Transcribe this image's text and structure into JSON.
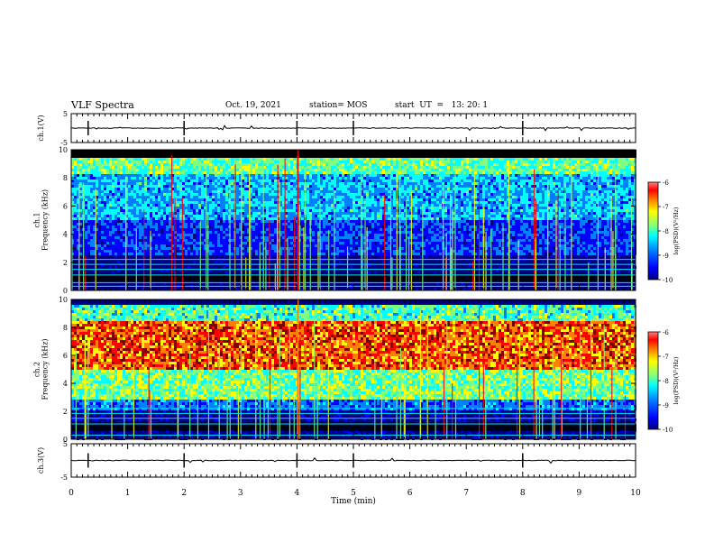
{
  "header": {
    "title": "VLF Spectra",
    "date": "Oct. 19, 2021",
    "station": "station= MOS",
    "start_ut": "start  UT  =   13: 20: 1"
  },
  "colors": {
    "jet": [
      "#00007f",
      "#0000ff",
      "#007fff",
      "#00ffff",
      "#7fff7f",
      "#ffff00",
      "#ff7f00",
      "#ff0000",
      "#7f0000"
    ],
    "background_band": "#000000",
    "cyan_lines": "#00e0ff"
  },
  "chart_data": [
    {
      "type": "line",
      "name": "ch1-waveform",
      "ylabel": "ch.1(V)",
      "ylim": [
        -5,
        5
      ],
      "yticks": [
        "5",
        "-5"
      ],
      "baseline": 0,
      "xlim": [
        0,
        10
      ]
    },
    {
      "type": "heatmap",
      "name": "ch1-spectrogram",
      "ylabel": "ch.1\nFrequency (kHz)",
      "ylim": [
        0,
        10
      ],
      "yticks": [
        "0",
        "2",
        "4",
        "6",
        "8",
        "10"
      ],
      "xlim": [
        0,
        10
      ],
      "color_scale": {
        "label": "log(PSD)(V²/Hz)",
        "range": [
          -10,
          -6
        ],
        "ticks": [
          "-6",
          "-7",
          "-8",
          "-9",
          "-10"
        ]
      },
      "noise_floor_kHz": 9.5,
      "cyan_line_freqs_kHz": [
        0.3,
        0.55,
        1.1,
        1.5,
        1.85,
        2.2
      ]
    },
    {
      "type": "heatmap",
      "name": "ch2-spectrogram",
      "ylabel": "ch.2\nFrequency (kHz)",
      "ylim": [
        0,
        10
      ],
      "yticks": [
        "0",
        "2",
        "4",
        "6",
        "8",
        "10"
      ],
      "xlim": [
        0,
        10
      ],
      "color_scale": {
        "label": "log(PSD)(V²/Hz)",
        "range": [
          -10,
          -6
        ],
        "ticks": [
          "-6",
          "-7",
          "-8",
          "-9",
          "-10"
        ]
      },
      "intense_band_kHz": [
        5,
        8
      ],
      "cyan_line_freqs_kHz": [
        0.3,
        1.1,
        1.5,
        1.85,
        2.2
      ]
    },
    {
      "type": "line",
      "name": "ch3-waveform",
      "ylabel": "ch.3(V)",
      "ylim": [
        -5,
        5
      ],
      "yticks": [
        "5",
        "-5"
      ],
      "baseline": 0,
      "xlim": [
        0,
        10
      ]
    }
  ],
  "x_axis": {
    "label": "Time  (min)",
    "ticks": [
      "0",
      "1",
      "2",
      "3",
      "4",
      "5",
      "6",
      "7",
      "8",
      "9",
      "10"
    ]
  }
}
